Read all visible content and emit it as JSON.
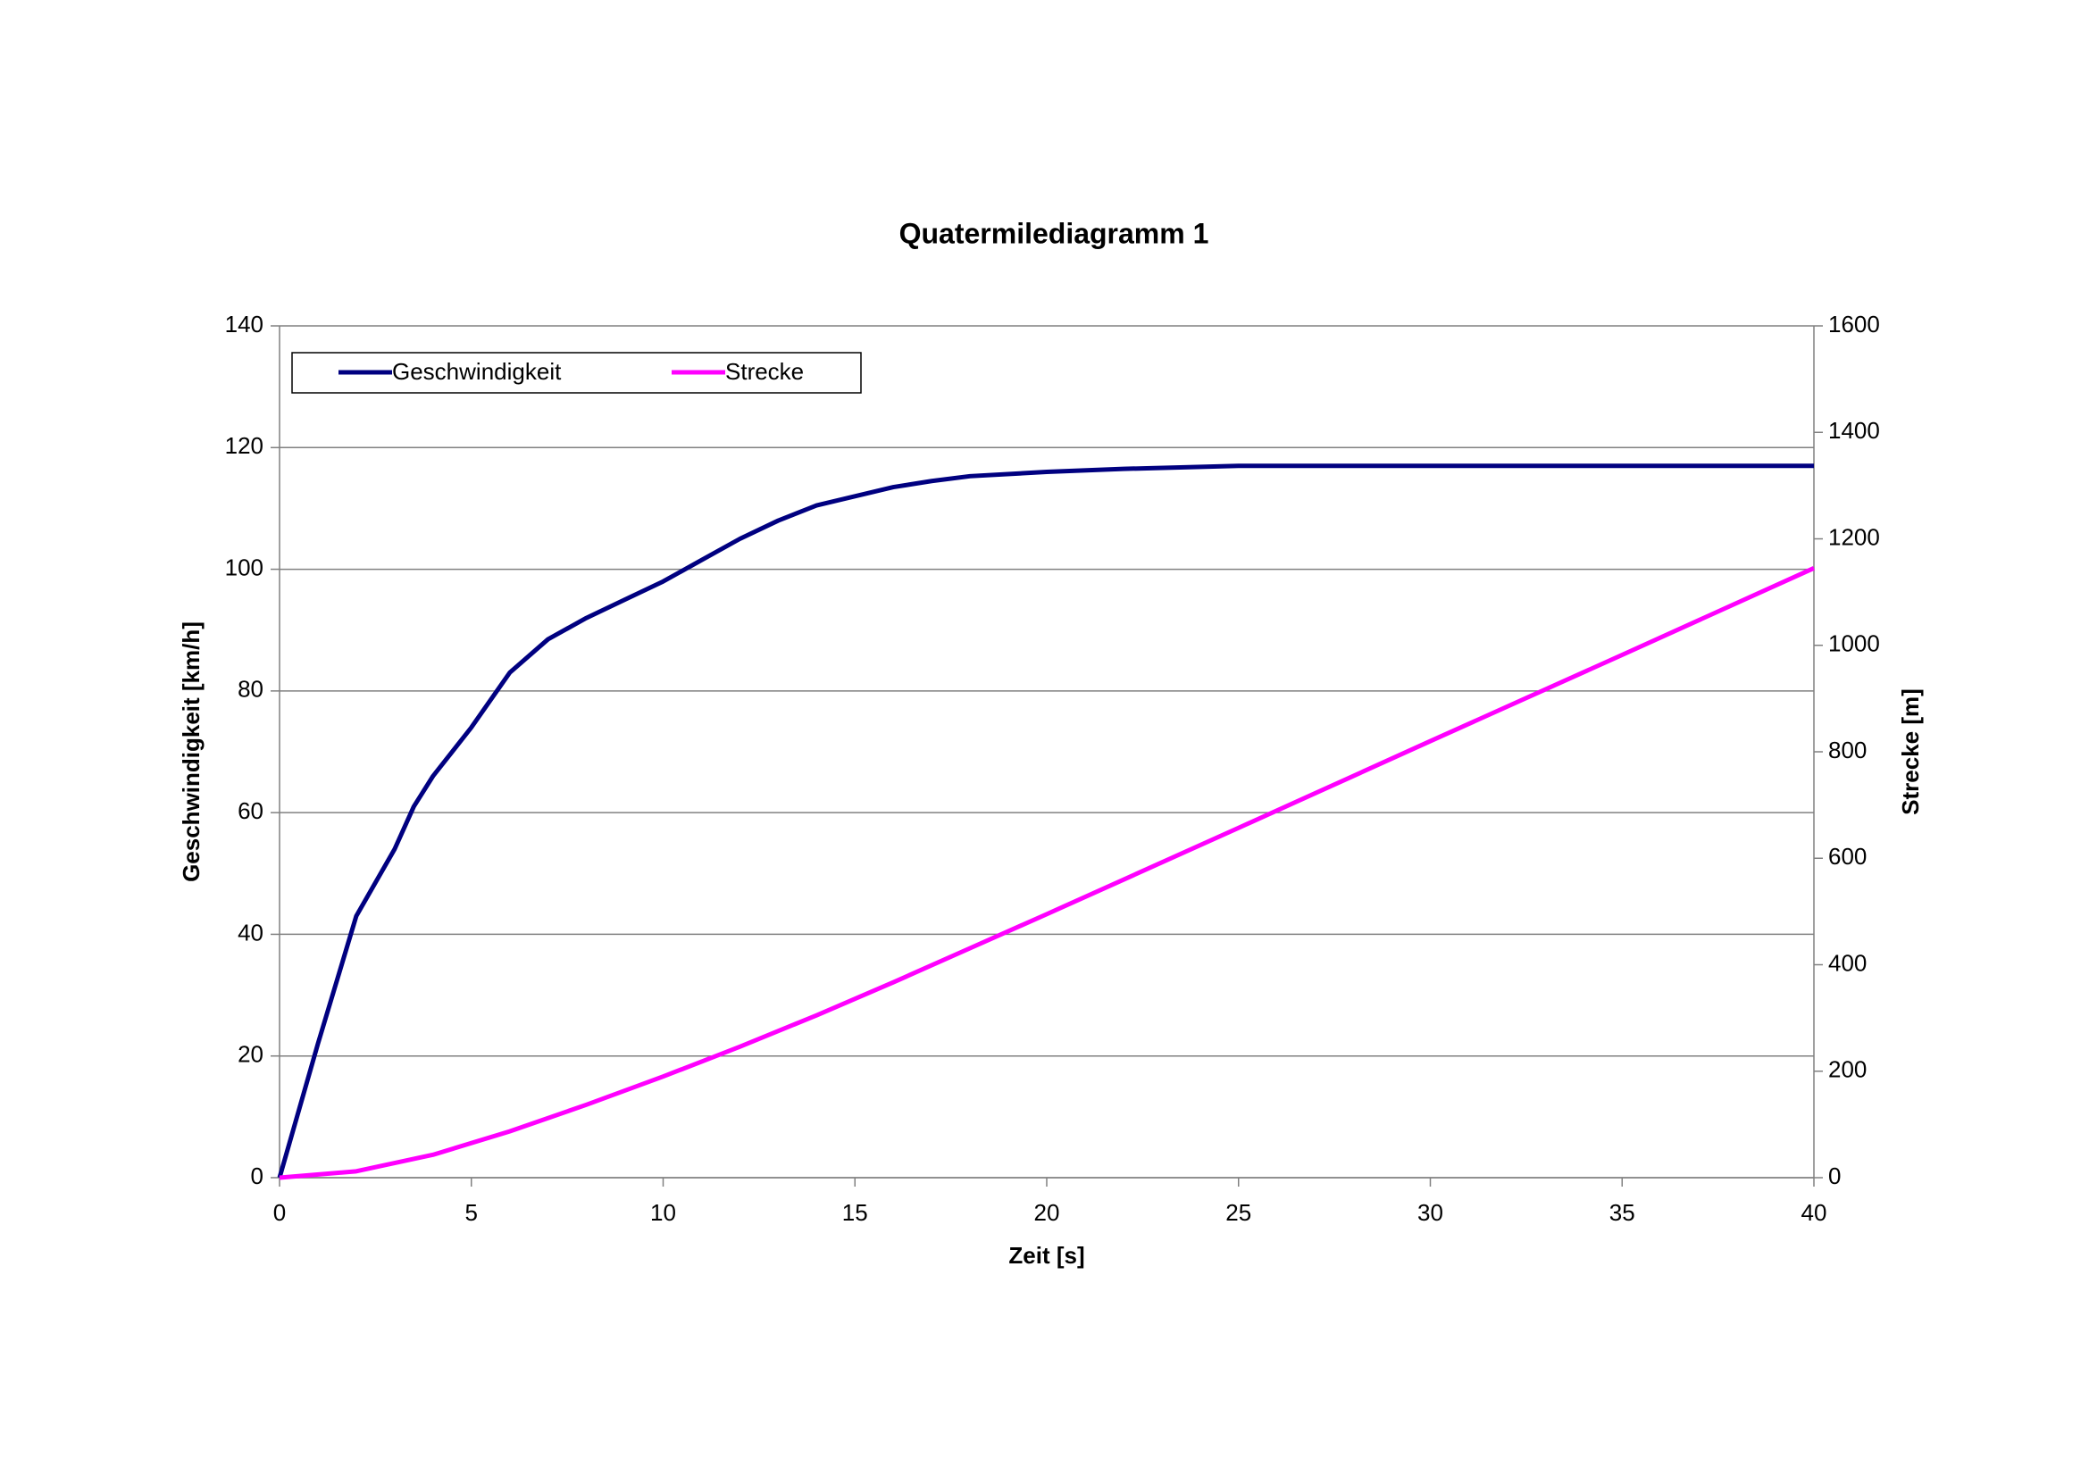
{
  "chart_data": {
    "type": "line",
    "title": "Quatermilediagramm 1",
    "x_label": "Zeit [s]",
    "y_label": "Geschwindigkeit [km/h]",
    "y2_label": "Strecke [m]",
    "xlim": [
      0,
      40
    ],
    "xticks": [
      0,
      5,
      10,
      15,
      20,
      25,
      30,
      35,
      40
    ],
    "ylim": [
      0,
      140
    ],
    "yticks": [
      0,
      20,
      40,
      60,
      80,
      100,
      120,
      140
    ],
    "y2lim": [
      0,
      1600
    ],
    "y2ticks": [
      0,
      200,
      400,
      600,
      800,
      1000,
      1200,
      1400,
      1600
    ],
    "grid": true,
    "legend": "top-left",
    "series": [
      {
        "name": "Geschwindigkeit",
        "color": "#000080",
        "x": [
          0,
          1,
          2,
          3,
          3.5,
          4,
          5,
          6,
          7,
          8,
          9,
          10,
          11,
          12,
          13,
          14,
          15,
          16,
          17,
          18,
          20,
          22,
          25,
          30,
          35,
          40
        ],
        "values": [
          0,
          22,
          43,
          54,
          61,
          66,
          74,
          83,
          88.5,
          92,
          95,
          98,
          101.5,
          105,
          108,
          110.5,
          112,
          113.5,
          114.5,
          115.3,
          116,
          116.5,
          117,
          117,
          117,
          117
        ]
      },
      {
        "name": "Strecke",
        "color": "#ff00ff",
        "axis": "y2",
        "x": [
          0,
          2,
          4,
          6,
          8,
          10,
          12,
          14,
          16,
          18,
          20,
          25,
          30,
          35,
          40
        ],
        "values": [
          0,
          12,
          43,
          87,
          137,
          190,
          246,
          305,
          367,
          431,
          495,
          657,
          820,
          982,
          1145
        ]
      }
    ]
  }
}
